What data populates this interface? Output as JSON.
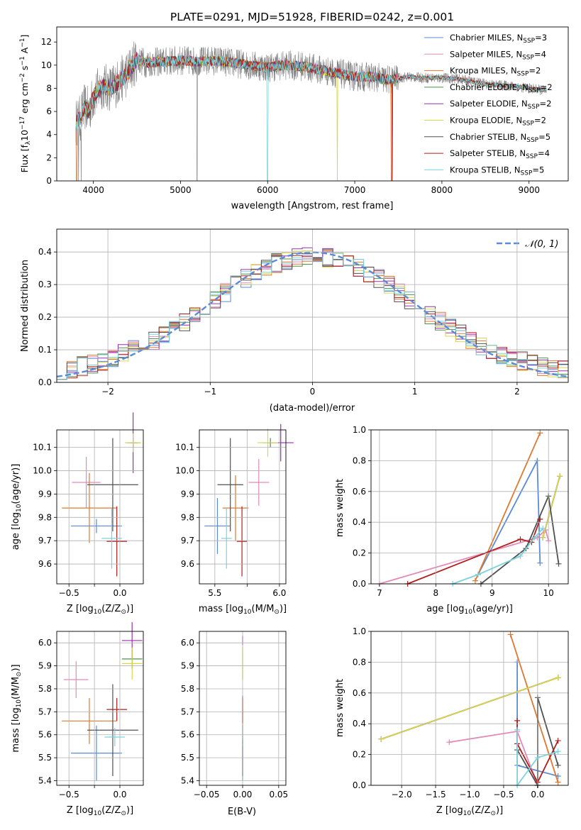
{
  "palette": {
    "Chabrier MILES": "#5b8bd6",
    "Salpeter MILES": "#e58ab8",
    "Kroupa MILES": "#e0782e",
    "Chabrier ELODIE": "#4f8f4f",
    "Salpeter ELODIE": "#9b2fb2",
    "Kroupa ELODIE": "#d6d84a",
    "Chabrier STELIB": "#505050",
    "Salpeter STELIB": "#b01e1e",
    "Kroupa STELIB": "#7ad3dc",
    "data": "#808080",
    "gauss": "#5b8bd6"
  },
  "chart_data": [
    {
      "type": "line",
      "title": "PLATE=0291, MJD=51928, FIBERID=0242, z=0.001",
      "xlabel": "wavelength [Angstrom, rest frame]",
      "ylabel": "Flux [f",
      "ylabel_parts": [
        "Flux [f",
        "λ",
        "10",
        "−17",
        " erg cm",
        "−2",
        " s",
        "−1",
        " A",
        "−1",
        "]"
      ],
      "xlim": [
        3580,
        9450
      ],
      "ylim": [
        0,
        13.3
      ],
      "xticks": [
        4000,
        5000,
        6000,
        7000,
        8000,
        9000
      ],
      "yticks": [
        0,
        2,
        4,
        6,
        8,
        10,
        12
      ],
      "legend": "top-right",
      "legend_entries": [
        {
          "prefix": "Chabrier MILES, N",
          "sub": "SSP",
          "suffix": "=3",
          "key": "Chabrier MILES"
        },
        {
          "prefix": "Salpeter MILES, N",
          "sub": "SSP",
          "suffix": "=4",
          "key": "Salpeter MILES"
        },
        {
          "prefix": "Kroupa MILES, N",
          "sub": "SSP",
          "suffix": "=2",
          "key": "Kroupa MILES"
        },
        {
          "prefix": "Chabrier ELODIE, N",
          "sub": "SSP",
          "suffix": "=2",
          "key": "Chabrier ELODIE"
        },
        {
          "prefix": "Salpeter ELODIE, N",
          "sub": "SSP",
          "suffix": "=2",
          "key": "Salpeter ELODIE"
        },
        {
          "prefix": "Kroupa ELODIE, N",
          "sub": "SSP",
          "suffix": "=2",
          "key": "Kroupa ELODIE"
        },
        {
          "prefix": "Chabrier STELIB, N",
          "sub": "SSP",
          "suffix": "=5",
          "key": "Chabrier STELIB"
        },
        {
          "prefix": "Salpeter STELIB, N",
          "sub": "SSP",
          "suffix": "=4",
          "key": "Salpeter STELIB"
        },
        {
          "prefix": "Kroupa STELIB, N",
          "sub": "SSP",
          "suffix": "=5",
          "key": "Kroupa STELIB"
        }
      ],
      "continuum_wavelength": [
        3800,
        3850,
        3900,
        3950,
        4000,
        4100,
        4200,
        4300,
        4400,
        4500,
        4600,
        4800,
        5000,
        5200,
        5400,
        5600,
        5800,
        6000,
        6200,
        6400,
        6600,
        6800,
        7000,
        7200,
        7400,
        7600,
        7800,
        8000,
        8200,
        8400,
        8600,
        8800,
        9000,
        9200
      ],
      "continuum_flux": [
        5.0,
        5.4,
        6.4,
        6.0,
        7.3,
        8.2,
        8.0,
        8.6,
        9.4,
        10.5,
        10.2,
        10.3,
        10.4,
        10.3,
        10.4,
        10.2,
        10.0,
        9.8,
        10.0,
        9.9,
        9.6,
        9.3,
        9.0,
        9.0,
        8.7,
        9.0,
        8.9,
        8.9,
        8.8,
        8.5,
        8.3,
        8.2,
        8.0,
        7.8
      ],
      "model_dropouts": [
        {
          "model": "Kroupa MILES",
          "wavelength": 3810
        },
        {
          "model": "Kroupa STELIB",
          "wavelength": 6000
        },
        {
          "model": "Kroupa ELODIE",
          "wavelength": 6800
        },
        {
          "model": "Kroupa MILES",
          "wavelength": 7420
        },
        {
          "model": "Salpeter STELIB",
          "wavelength": 7430
        }
      ]
    },
    {
      "type": "histogram",
      "xlabel": "(data-model)/error",
      "ylabel": "Normed distribution",
      "xlim": [
        -2.5,
        2.5
      ],
      "ylim": [
        0,
        0.47
      ],
      "xticks": [
        -2,
        -1,
        0,
        1,
        2
      ],
      "xtick_labels": [
        "−2",
        "−1",
        "0",
        "1",
        "2"
      ],
      "yticks": [
        0.0,
        0.1,
        0.2,
        0.3,
        0.4
      ],
      "ytick_labels": [
        "0.0",
        "0.1",
        "0.2",
        "0.3",
        "0.4"
      ],
      "bin_width": 0.1,
      "gaussian_label": "𝒩(0, 1)",
      "legend": "top-right",
      "grid": true
    },
    {
      "type": "scatter",
      "xlabel": "Z [log",
      "xlabel_parts": [
        "Z [log",
        "10",
        "(Z/Z",
        "⊙",
        ")]"
      ],
      "ylabel_parts": [
        "age  [log",
        "10",
        "(age/yr)]"
      ],
      "xlim": [
        -0.62,
        0.23
      ],
      "ylim": [
        9.515,
        10.175
      ],
      "xticks": [
        -0.5,
        -0.25,
        0.0
      ],
      "xtick_labels": [
        "−0.5",
        "",
        "0.0"
      ],
      "yticks": [
        9.6,
        9.7,
        9.8,
        9.9,
        10.0,
        10.1
      ],
      "ytick_labels": [
        "9.6",
        "9.7",
        "9.8",
        "9.9",
        "10.0",
        "10.1"
      ],
      "points": [
        {
          "model": "Chabrier MILES",
          "x": -0.23,
          "y": 9.763,
          "xerr": 0.25,
          "yerr": 0.03
        },
        {
          "model": "Salpeter MILES",
          "x": -0.33,
          "y": 9.95,
          "xerr": 0.14,
          "yerr": 0.11
        },
        {
          "model": "Kroupa MILES",
          "x": -0.3,
          "y": 9.84,
          "xerr": 0.27,
          "yerr": 0.15
        },
        {
          "model": "Chabrier ELODIE",
          "x": 0.13,
          "y": 10.12,
          "xerr": 0.07,
          "yerr": 0.02
        },
        {
          "model": "Salpeter ELODIE",
          "x": 0.13,
          "y": 10.12,
          "xerr": 0.05,
          "yerr": 0.13
        },
        {
          "model": "Kroupa ELODIE",
          "x": 0.13,
          "y": 10.12,
          "xerr": 0.08,
          "yerr": 0.04
        },
        {
          "model": "Chabrier STELIB",
          "x": -0.07,
          "y": 9.94,
          "xerr": 0.25,
          "yerr": 0.2
        },
        {
          "model": "Salpeter STELIB",
          "x": -0.03,
          "y": 9.697,
          "xerr": 0.1,
          "yerr": 0.15
        },
        {
          "model": "Kroupa STELIB",
          "x": -0.08,
          "y": 9.71,
          "xerr": 0.1,
          "yerr": 0.13
        }
      ]
    },
    {
      "type": "scatter",
      "xlabel_parts": [
        "mass [log",
        "10",
        "(M/M",
        "⊙",
        ")]"
      ],
      "xlim": [
        5.38,
        6.05
      ],
      "ylim": [
        9.515,
        10.175
      ],
      "xticks": [
        5.5,
        5.75,
        6.0
      ],
      "xtick_labels": [
        "5.5",
        "",
        "6.0"
      ],
      "yticks": [
        9.6,
        9.7,
        9.8,
        9.9,
        10.0,
        10.1
      ],
      "ytick_labels": [
        "9.6",
        "9.7",
        "9.8",
        "9.9",
        "10.0",
        "10.1"
      ],
      "points": [
        {
          "model": "Chabrier MILES",
          "x": 5.52,
          "y": 9.763,
          "xerr": 0.1,
          "yerr": 0.12
        },
        {
          "model": "Salpeter MILES",
          "x": 5.84,
          "y": 9.95,
          "xerr": 0.08,
          "yerr": 0.1
        },
        {
          "model": "Kroupa MILES",
          "x": 5.66,
          "y": 9.84,
          "xerr": 0.1,
          "yerr": 0.14
        },
        {
          "model": "Chabrier ELODIE",
          "x": 5.93,
          "y": 10.12,
          "xerr": 0.06,
          "yerr": 0.02
        },
        {
          "model": "Salpeter ELODIE",
          "x": 6.01,
          "y": 10.12,
          "xerr": 0.1,
          "yerr": 0.08
        },
        {
          "model": "Kroupa ELODIE",
          "x": 5.91,
          "y": 10.12,
          "xerr": 0.08,
          "yerr": 0.06
        },
        {
          "model": "Chabrier STELIB",
          "x": 5.62,
          "y": 9.94,
          "xerr": 0.1,
          "yerr": 0.2
        },
        {
          "model": "Salpeter STELIB",
          "x": 5.71,
          "y": 9.697,
          "xerr": 0.04,
          "yerr": 0.15
        },
        {
          "model": "Kroupa STELIB",
          "x": 5.59,
          "y": 9.71,
          "xerr": 0.04,
          "yerr": 0.13
        }
      ]
    },
    {
      "type": "line",
      "xlabel_parts": [
        "age  [log",
        "10",
        "(age/yr)]"
      ],
      "ylabel": "mass weight",
      "xlim": [
        6.85,
        10.35
      ],
      "ylim": [
        0,
        1.0
      ],
      "xticks": [
        7,
        8,
        9,
        10
      ],
      "yticks": [
        0.0,
        0.2,
        0.4,
        0.6,
        0.8,
        1.0
      ],
      "ytick_labels": [
        "0.0",
        "0.2",
        "0.4",
        "0.6",
        "0.8",
        "1.0"
      ],
      "grid": true,
      "series": [
        {
          "model": "Chabrier MILES",
          "x": [
            9.85,
            9.8,
            8.75
          ],
          "y": [
            0.135,
            0.8,
            0.06
          ]
        },
        {
          "model": "Salpeter MILES",
          "x": [
            7.0,
            9.8,
            9.95,
            10.0
          ],
          "y": [
            0.0,
            0.3,
            0.35,
            0.28
          ]
        },
        {
          "model": "Kroupa MILES",
          "x": [
            9.85,
            8.7
          ],
          "y": [
            0.98,
            0.02
          ]
        },
        {
          "model": "Chabrier ELODIE",
          "x": [
            9.9,
            10.2
          ],
          "y": [
            0.3,
            0.7
          ]
        },
        {
          "model": "Salpeter ELODIE",
          "x": [
            9.9,
            10.2
          ],
          "y": [
            0.3,
            0.7
          ]
        },
        {
          "model": "Kroupa ELODIE",
          "x": [
            9.9,
            10.2
          ],
          "y": [
            0.3,
            0.7
          ]
        },
        {
          "model": "Chabrier STELIB",
          "x": [
            8.8,
            9.6,
            10.0,
            10.18
          ],
          "y": [
            0.0,
            0.23,
            0.57,
            0.13
          ]
        },
        {
          "model": "Salpeter STELIB",
          "x": [
            7.5,
            9.5,
            9.7,
            9.85
          ],
          "y": [
            0.0,
            0.29,
            0.27,
            0.42
          ]
        },
        {
          "model": "Kroupa STELIB",
          "x": [
            8.3,
            8.75,
            9.5,
            9.75,
            9.9
          ],
          "y": [
            0.0,
            0.06,
            0.18,
            0.3,
            0.36
          ]
        }
      ]
    },
    {
      "type": "scatter",
      "xlabel_parts": [
        "Z [log",
        "10",
        "(Z/Z",
        "⊙",
        ")]"
      ],
      "ylabel_parts": [
        "mass [log",
        "10",
        "(M/M",
        "⊙",
        ")]"
      ],
      "xlim": [
        -0.62,
        0.23
      ],
      "ylim": [
        5.38,
        6.05
      ],
      "xticks": [
        -0.5,
        -0.25,
        0.0
      ],
      "xtick_labels": [
        "−0.5",
        "",
        "0.0"
      ],
      "yticks": [
        5.4,
        5.5,
        5.6,
        5.7,
        5.8,
        5.9,
        6.0
      ],
      "ytick_labels": [
        "5.4",
        "5.5",
        "5.6",
        "5.7",
        "5.8",
        "5.9",
        "6.0"
      ],
      "points": [
        {
          "model": "Chabrier MILES",
          "x": -0.23,
          "y": 5.52,
          "xerr": 0.25,
          "yerr": 0.12
        },
        {
          "model": "Salpeter MILES",
          "x": -0.43,
          "y": 5.84,
          "xerr": 0.12,
          "yerr": 0.08
        },
        {
          "model": "Kroupa MILES",
          "x": -0.3,
          "y": 5.66,
          "xerr": 0.27,
          "yerr": 0.1
        },
        {
          "model": "Chabrier ELODIE",
          "x": 0.12,
          "y": 5.93,
          "xerr": 0.1,
          "yerr": 0.04
        },
        {
          "model": "Salpeter ELODIE",
          "x": 0.12,
          "y": 6.01,
          "xerr": 0.1,
          "yerr": 0.08
        },
        {
          "model": "Kroupa ELODIE",
          "x": 0.12,
          "y": 5.91,
          "xerr": 0.1,
          "yerr": 0.07
        },
        {
          "model": "Chabrier STELIB",
          "x": -0.07,
          "y": 5.62,
          "xerr": 0.25,
          "yerr": 0.2
        },
        {
          "model": "Salpeter STELIB",
          "x": -0.03,
          "y": 5.71,
          "xerr": 0.1,
          "yerr": 0.05
        },
        {
          "model": "Kroupa STELIB",
          "x": -0.05,
          "y": 5.59,
          "xerr": 0.1,
          "yerr": 0.04
        }
      ]
    },
    {
      "type": "scatter",
      "xlabel": "E(B-V)",
      "xlim": [
        -0.06,
        0.06
      ],
      "ylim": [
        5.38,
        6.05
      ],
      "xticks": [
        -0.05,
        0.0,
        0.05
      ],
      "xtick_labels": [
        "−0.05",
        "0.00",
        "0.05"
      ],
      "yticks": [
        5.4,
        5.5,
        5.6,
        5.7,
        5.8,
        5.9,
        6.0
      ],
      "ytick_labels": [
        "5.4",
        "5.5",
        "5.6",
        "5.7",
        "5.8",
        "5.9",
        "6.0"
      ],
      "points": [
        {
          "model": "Chabrier MILES",
          "x": 0.0,
          "y": 5.52,
          "xerr": 0.0,
          "yerr": 0.12
        },
        {
          "model": "Kroupa MILES",
          "x": 0.0,
          "y": 5.66,
          "xerr": 0.0,
          "yerr": 0.1
        },
        {
          "model": "Salpeter ELODIE",
          "x": 0.0,
          "y": 6.01,
          "xerr": 0.0,
          "yerr": 0.02
        },
        {
          "model": "Kroupa ELODIE",
          "x": 0.0,
          "y": 5.91,
          "xerr": 0.0,
          "yerr": 0.07
        },
        {
          "model": "Chabrier STELIB",
          "x": 0.0,
          "y": 5.5,
          "xerr": 0.0,
          "yerr": 0.08
        },
        {
          "model": "Salpeter STELIB",
          "x": 0.0,
          "y": 5.71,
          "xerr": 0.0,
          "yerr": 0.06
        },
        {
          "model": "Kroupa STELIB",
          "x": 0.0,
          "y": 5.59,
          "xerr": 0.0,
          "yerr": 0.04
        }
      ]
    },
    {
      "type": "line",
      "xlabel_parts": [
        "Z [log",
        "10",
        "(Z/Z",
        "⊙",
        ")]"
      ],
      "ylabel": "mass weight",
      "xlim": [
        -2.45,
        0.45
      ],
      "ylim": [
        0,
        1.0
      ],
      "xticks": [
        -2.0,
        -1.5,
        -1.0,
        -0.5,
        0.0
      ],
      "xtick_labels": [
        "−2.0",
        "−1.5",
        "−1.0",
        "−0.5",
        "0.0"
      ],
      "yticks": [
        0.0,
        0.2,
        0.4,
        0.6,
        0.8,
        1.0
      ],
      "ytick_labels": [
        "0.0",
        "0.2",
        "0.4",
        "0.6",
        "0.8",
        "1.0"
      ],
      "grid": true,
      "series": [
        {
          "model": "Chabrier MILES",
          "x": [
            -0.3,
            -0.3,
            0.3
          ],
          "y": [
            0.8,
            0.13,
            0.06
          ]
        },
        {
          "model": "Salpeter MILES",
          "x": [
            -1.3,
            -0.3,
            0.0
          ],
          "y": [
            0.28,
            0.35,
            0.0
          ]
        },
        {
          "model": "Kroupa MILES",
          "x": [
            -0.4,
            0.3
          ],
          "y": [
            0.98,
            0.02
          ]
        },
        {
          "model": "Chabrier ELODIE",
          "x": [
            -2.3,
            0.3
          ],
          "y": [
            0.3,
            0.7
          ]
        },
        {
          "model": "Salpeter ELODIE",
          "x": [
            -2.3,
            0.3
          ],
          "y": [
            0.3,
            0.7
          ]
        },
        {
          "model": "Kroupa ELODIE",
          "x": [
            -2.3,
            0.3
          ],
          "y": [
            0.3,
            0.7
          ]
        },
        {
          "model": "Chabrier STELIB",
          "x": [
            -0.3,
            0.0,
            0.0,
            0.3
          ],
          "y": [
            0.23,
            0.0,
            0.57,
            0.13
          ]
        },
        {
          "model": "Salpeter STELIB",
          "x": [
            -0.3,
            -0.3,
            0.0,
            0.3
          ],
          "y": [
            0.42,
            0.27,
            0.02,
            0.29
          ]
        },
        {
          "model": "Kroupa STELIB",
          "x": [
            -0.3,
            -0.3,
            0.0,
            0.3
          ],
          "y": [
            0.36,
            0.0,
            0.18,
            0.22
          ]
        }
      ]
    }
  ]
}
